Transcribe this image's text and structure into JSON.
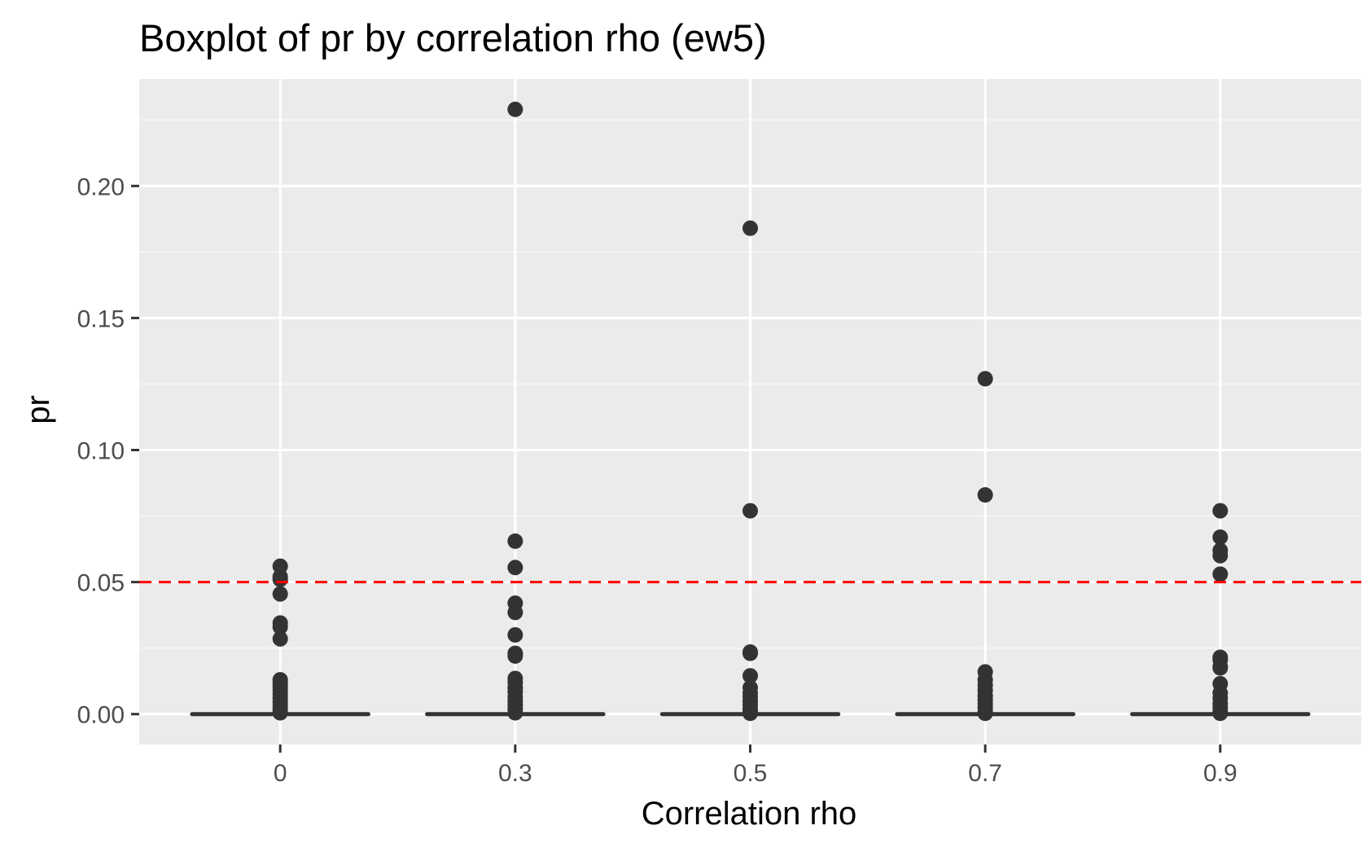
{
  "chart_data": {
    "type": "box",
    "title": "Boxplot of pr by correlation rho (ew5)",
    "xlabel": "Correlation rho",
    "ylabel": "pr",
    "categories": [
      "0",
      "0.3",
      "0.5",
      "0.7",
      "0.9"
    ],
    "yticks": [
      "0.00",
      "0.05",
      "0.10",
      "0.15",
      "0.20"
    ],
    "ytick_values": [
      0,
      0.05,
      0.1,
      0.15,
      0.2
    ],
    "ylim": [
      -0.0115,
      0.2405
    ],
    "grid": true,
    "reference_line": {
      "y": 0.05,
      "color": "#ff0000",
      "style": "dashed"
    },
    "boxes": [
      {
        "category": "0",
        "min": 0,
        "q1": 0,
        "median": 0,
        "q3": 0,
        "max": 0
      },
      {
        "category": "0.3",
        "min": 0,
        "q1": 0,
        "median": 0,
        "q3": 0,
        "max": 0
      },
      {
        "category": "0.5",
        "min": 0,
        "q1": 0,
        "median": 0,
        "q3": 0,
        "max": 0
      },
      {
        "category": "0.7",
        "min": 0,
        "q1": 0,
        "median": 0,
        "q3": 0,
        "max": 0
      },
      {
        "category": "0.9",
        "min": 0,
        "q1": 0,
        "median": 0,
        "q3": 0,
        "max": 0
      }
    ],
    "outliers": [
      {
        "category": "0",
        "values": [
          0.056,
          0.052,
          0.051,
          0.0455,
          0.0345,
          0.033,
          0.0285,
          0.013,
          0.012,
          0.0105,
          0.009,
          0.0075,
          0.006,
          0.0045,
          0.003,
          0.0015,
          0.0005
        ]
      },
      {
        "category": "0.3",
        "values": [
          0.229,
          0.0655,
          0.0555,
          0.042,
          0.0385,
          0.03,
          0.023,
          0.022,
          0.0135,
          0.012,
          0.01,
          0.0085,
          0.0065,
          0.005,
          0.0035,
          0.002,
          0.0005
        ]
      },
      {
        "category": "0.5",
        "values": [
          0.184,
          0.077,
          0.0235,
          0.023,
          0.0145,
          0.01,
          0.008,
          0.0065,
          0.005,
          0.0035,
          0.002,
          0.001,
          0.0003
        ]
      },
      {
        "category": "0.7",
        "values": [
          0.127,
          0.083,
          0.016,
          0.013,
          0.011,
          0.009,
          0.007,
          0.0055,
          0.004,
          0.0025,
          0.001,
          0.0003
        ]
      },
      {
        "category": "0.9",
        "values": [
          0.077,
          0.067,
          0.062,
          0.06,
          0.053,
          0.0215,
          0.0205,
          0.018,
          0.0175,
          0.0115,
          0.008,
          0.006,
          0.004,
          0.0025,
          0.001,
          0.0003
        ]
      }
    ],
    "colors": {
      "panel_background": "#ebebeb",
      "grid_major": "#ffffff",
      "grid_minor": "#f7f7f7",
      "points": "#333333",
      "reference_line": "#ff0000",
      "tick_label": "#4d4d4d",
      "tick_mark": "#333333"
    }
  }
}
